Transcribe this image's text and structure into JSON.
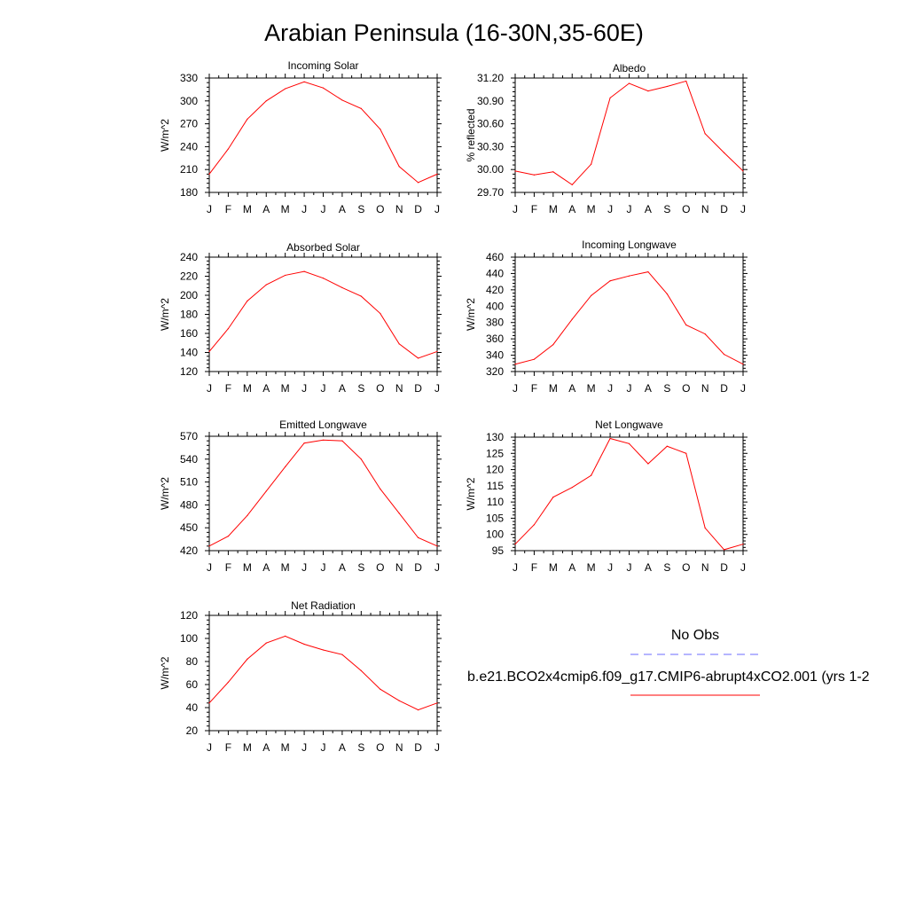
{
  "figure_title": "Arabian Peninsula (16-30N,35-60E)",
  "month_labels": [
    "J",
    "F",
    "M",
    "A",
    "M",
    "J",
    "J",
    "A",
    "S",
    "O",
    "N",
    "D",
    "J"
  ],
  "colors": {
    "model": "#ff0000",
    "obs": "#6b6bff",
    "axis": "#000000"
  },
  "legend": {
    "obs_label": "No Obs",
    "model_label": "b.e21.BCO2x4cmip6.f09_g17.CMIP6-abrupt4xCO2.001 (yrs 1-2"
  },
  "chart_data": [
    {
      "type": "line",
      "title": "Incoming Solar",
      "ylabel": "W/m^2",
      "ylim": [
        180,
        330
      ],
      "yticks": [
        180,
        210,
        240,
        270,
        300,
        330
      ],
      "ytick_labels": [
        "180",
        "210",
        "240",
        "270",
        "300",
        "330"
      ],
      "x": [
        "J",
        "F",
        "M",
        "A",
        "M",
        "J",
        "J",
        "A",
        "S",
        "O",
        "N",
        "D",
        "J"
      ],
      "series": [
        {
          "values": [
            204,
            237,
            276,
            300,
            316,
            325,
            317,
            301,
            290,
            263,
            214,
            193,
            204
          ]
        }
      ]
    },
    {
      "type": "line",
      "title": "Albedo",
      "ylabel": "% reflected",
      "ylim": [
        29.7,
        31.2
      ],
      "yticks": [
        29.7,
        30.0,
        30.3,
        30.6,
        30.9,
        31.2
      ],
      "ytick_labels": [
        "29.70",
        "30.00",
        "30.30",
        "30.60",
        "30.90",
        "31.20"
      ],
      "x": [
        "J",
        "F",
        "M",
        "A",
        "M",
        "J",
        "J",
        "A",
        "S",
        "O",
        "N",
        "D",
        "J"
      ],
      "series": [
        {
          "values": [
            29.98,
            29.93,
            29.97,
            29.8,
            30.07,
            30.94,
            31.13,
            31.03,
            31.09,
            31.16,
            30.47,
            30.22,
            29.98
          ]
        }
      ]
    },
    {
      "type": "line",
      "title": "Absorbed Solar",
      "ylabel": "W/m^2",
      "ylim": [
        120,
        240
      ],
      "yticks": [
        120,
        140,
        160,
        180,
        200,
        220,
        240
      ],
      "ytick_labels": [
        "120",
        "140",
        "160",
        "180",
        "200",
        "220",
        "240"
      ],
      "x": [
        "J",
        "F",
        "M",
        "A",
        "M",
        "J",
        "J",
        "A",
        "S",
        "O",
        "N",
        "D",
        "J"
      ],
      "series": [
        {
          "values": [
            141,
            165,
            194,
            211,
            221,
            225,
            218,
            208,
            199,
            181,
            149,
            134,
            141
          ]
        }
      ]
    },
    {
      "type": "line",
      "title": "Incoming Longwave",
      "ylabel": "W/m^2",
      "ylim": [
        320,
        460
      ],
      "yticks": [
        320,
        340,
        360,
        380,
        400,
        420,
        440,
        460
      ],
      "ytick_labels": [
        "320",
        "340",
        "360",
        "380",
        "400",
        "420",
        "440",
        "460"
      ],
      "x": [
        "J",
        "F",
        "M",
        "A",
        "M",
        "J",
        "J",
        "A",
        "S",
        "O",
        "N",
        "D",
        "J"
      ],
      "series": [
        {
          "values": [
            329,
            335,
            353,
            384,
            413,
            431,
            437,
            442,
            415,
            377,
            366,
            341,
            329
          ]
        }
      ]
    },
    {
      "type": "line",
      "title": "Emitted Longwave",
      "ylabel": "W/m^2",
      "ylim": [
        420,
        570
      ],
      "yticks": [
        420,
        450,
        480,
        510,
        540,
        570
      ],
      "ytick_labels": [
        "420",
        "450",
        "480",
        "510",
        "540",
        "570"
      ],
      "x": [
        "J",
        "F",
        "M",
        "A",
        "M",
        "J",
        "J",
        "A",
        "S",
        "O",
        "N",
        "D",
        "J"
      ],
      "series": [
        {
          "values": [
            426,
            439,
            466,
            498,
            530,
            561,
            565,
            564,
            540,
            501,
            469,
            437,
            426
          ]
        }
      ]
    },
    {
      "type": "line",
      "title": "Net Longwave",
      "ylabel": "W/m^2",
      "ylim": [
        95,
        130
      ],
      "yticks": [
        95,
        100,
        105,
        110,
        115,
        120,
        125,
        130
      ],
      "ytick_labels": [
        "95",
        "100",
        "105",
        "110",
        "115",
        "120",
        "125",
        "130"
      ],
      "x": [
        "J",
        "F",
        "M",
        "A",
        "M",
        "J",
        "J",
        "A",
        "S",
        "O",
        "N",
        "D",
        "J"
      ],
      "series": [
        {
          "values": [
            97,
            103,
            111.5,
            114.5,
            118.2,
            129.6,
            128,
            121.8,
            127.2,
            125,
            102,
            95.3,
            97
          ]
        }
      ]
    },
    {
      "type": "line",
      "title": "Net Radiation",
      "ylabel": "W/m^2",
      "ylim": [
        20,
        120
      ],
      "yticks": [
        20,
        40,
        60,
        80,
        100,
        120
      ],
      "ytick_labels": [
        "20",
        "40",
        "60",
        "80",
        "100",
        "120"
      ],
      "x": [
        "J",
        "F",
        "M",
        "A",
        "M",
        "J",
        "J",
        "A",
        "S",
        "O",
        "N",
        "D",
        "J"
      ],
      "series": [
        {
          "values": [
            44,
            62,
            82,
            96,
            102,
            95,
            90,
            86,
            72,
            56,
            46,
            38,
            44
          ]
        }
      ]
    }
  ]
}
